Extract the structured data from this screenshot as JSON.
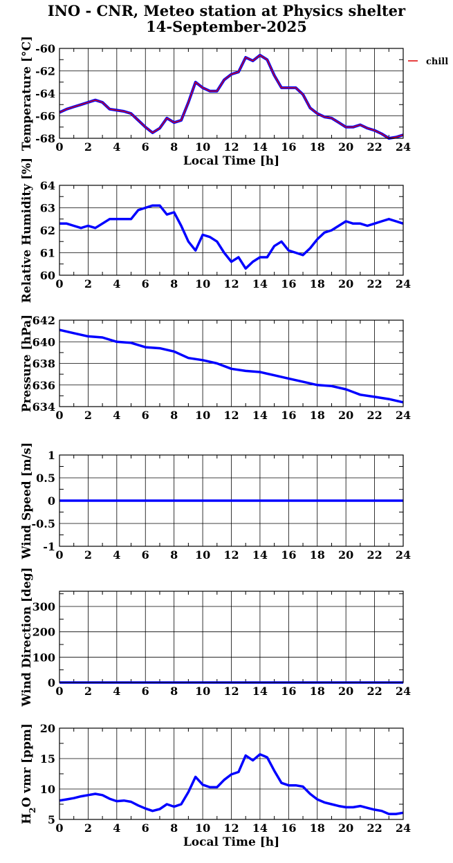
{
  "page": {
    "title_line1": "INO - CNR, Meteo station at Physics shelter",
    "title_line2": "14-September-2025"
  },
  "colors": {
    "series": "#0000ff",
    "chill": "#dd0000",
    "grid": "#000000"
  },
  "chart_data": [
    {
      "type": "line",
      "ylabel": "Temperature [°C]",
      "xlabel": "Local Time [h]",
      "xlim": [
        0,
        24
      ],
      "xticks": [
        0,
        2,
        4,
        6,
        8,
        10,
        12,
        14,
        16,
        18,
        20,
        22,
        24
      ],
      "ylim": [
        -68,
        -60
      ],
      "yticks": [
        -68,
        -66,
        -64,
        -62,
        -60
      ],
      "legend": {
        "label": "chill",
        "placement": "right"
      },
      "series": [
        {
          "name": "chill",
          "color": "#dd0000",
          "x": [
            0,
            0.5,
            1,
            1.5,
            2,
            2.5,
            3,
            3.5,
            4,
            4.5,
            5,
            5.5,
            6,
            6.5,
            7,
            7.5,
            8,
            8.5,
            9,
            9.5,
            10,
            10.5,
            11,
            11.5,
            12,
            12.5,
            13,
            13.5,
            14,
            14.5,
            15,
            15.5,
            16,
            16.5,
            17,
            17.5,
            18,
            18.5,
            19,
            19.5,
            20,
            20.5,
            21,
            21.5,
            22,
            22.5,
            23,
            23.5,
            24
          ],
          "y": [
            -65.7,
            -65.4,
            -65.2,
            -65.0,
            -64.8,
            -64.6,
            -64.8,
            -65.4,
            -65.5,
            -65.6,
            -65.8,
            -66.4,
            -67.0,
            -67.5,
            -67.1,
            -66.2,
            -66.6,
            -66.4,
            -64.8,
            -63.0,
            -63.5,
            -63.8,
            -63.8,
            -62.8,
            -62.3,
            -62.1,
            -60.8,
            -61.1,
            -60.6,
            -61.0,
            -62.4,
            -63.5,
            -63.5,
            -63.5,
            -64.1,
            -65.3,
            -65.8,
            -66.1,
            -66.2,
            -66.6,
            -67.0,
            -67.0,
            -66.8,
            -67.1,
            -67.3,
            -67.6,
            -68.0,
            -67.9,
            -67.7
          ]
        }
      ]
    },
    {
      "type": "line",
      "ylabel": "Relative Humidity [%]",
      "xlabel": "",
      "xlim": [
        0,
        24
      ],
      "xticks": [
        0,
        2,
        4,
        6,
        8,
        10,
        12,
        14,
        16,
        18,
        20,
        22,
        24
      ],
      "ylim": [
        60,
        64
      ],
      "yticks": [
        60,
        61,
        62,
        63,
        64
      ],
      "series": [
        {
          "color": "#0000ff",
          "x": [
            0,
            0.5,
            1,
            1.5,
            2,
            2.5,
            3,
            3.5,
            4,
            4.5,
            5,
            5.5,
            6,
            6.5,
            7,
            7.5,
            8,
            8.5,
            9,
            9.5,
            10,
            10.5,
            11,
            11.5,
            12,
            12.5,
            13,
            13.5,
            14,
            14.5,
            15,
            15.5,
            16,
            16.5,
            17,
            17.5,
            18,
            18.5,
            19,
            19.5,
            20,
            20.5,
            21,
            21.5,
            22,
            22.5,
            23,
            23.5,
            24
          ],
          "y": [
            62.3,
            62.3,
            62.2,
            62.1,
            62.2,
            62.1,
            62.3,
            62.5,
            62.5,
            62.5,
            62.5,
            62.9,
            63.0,
            63.1,
            63.1,
            62.7,
            62.8,
            62.2,
            61.5,
            61.1,
            61.8,
            61.7,
            61.5,
            61.0,
            60.6,
            60.8,
            60.3,
            60.6,
            60.8,
            60.8,
            61.3,
            61.5,
            61.1,
            61.0,
            60.9,
            61.2,
            61.6,
            61.9,
            62.0,
            62.2,
            62.4,
            62.3,
            62.3,
            62.2,
            62.3,
            62.4,
            62.5,
            62.4,
            62.3
          ]
        }
      ]
    },
    {
      "type": "line",
      "ylabel": "Pressure [hPa]",
      "xlabel": "",
      "xlim": [
        0,
        24
      ],
      "xticks": [
        0,
        2,
        4,
        6,
        8,
        10,
        12,
        14,
        16,
        18,
        20,
        22,
        24
      ],
      "ylim": [
        634,
        642
      ],
      "yticks": [
        634,
        636,
        638,
        640,
        642
      ],
      "series": [
        {
          "color": "#0000ff",
          "x": [
            0,
            1,
            2,
            3,
            4,
            5,
            6,
            7,
            8,
            9,
            10,
            11,
            12,
            13,
            14,
            15,
            16,
            17,
            18,
            19,
            20,
            21,
            22,
            23,
            24
          ],
          "y": [
            641.1,
            640.8,
            640.5,
            640.4,
            640.0,
            639.9,
            639.5,
            639.4,
            639.1,
            638.5,
            638.3,
            638.0,
            637.5,
            637.3,
            637.2,
            636.9,
            636.6,
            636.3,
            636.0,
            635.9,
            635.6,
            635.1,
            634.9,
            634.7,
            634.4
          ]
        }
      ]
    },
    {
      "type": "line",
      "ylabel": "Wind Speed [m/s]",
      "xlabel": "",
      "xlim": [
        0,
        24
      ],
      "xticks": [
        0,
        2,
        4,
        6,
        8,
        10,
        12,
        14,
        16,
        18,
        20,
        22,
        24
      ],
      "ylim": [
        -1,
        1
      ],
      "yticks": [
        -1,
        -0.5,
        0,
        0.5,
        1
      ],
      "series": [
        {
          "color": "#0000ff",
          "x": [
            0,
            24
          ],
          "y": [
            0,
            0
          ]
        }
      ]
    },
    {
      "type": "line",
      "ylabel": "Wind Direction [deg]",
      "xlabel": "",
      "xlim": [
        0,
        24
      ],
      "xticks": [
        0,
        2,
        4,
        6,
        8,
        10,
        12,
        14,
        16,
        18,
        20,
        22,
        24
      ],
      "ylim": [
        0,
        360
      ],
      "yticks": [
        0,
        100,
        200,
        300
      ],
      "series": [
        {
          "color": "#0000ff",
          "x": [
            0,
            24
          ],
          "y": [
            0,
            0
          ]
        }
      ]
    },
    {
      "type": "line",
      "ylabel": "H2O vmr [ppm]",
      "xlabel": "Local Time [h]",
      "xlim": [
        0,
        24
      ],
      "xticks": [
        0,
        2,
        4,
        6,
        8,
        10,
        12,
        14,
        16,
        18,
        20,
        22,
        24
      ],
      "ylim": [
        5,
        20
      ],
      "yticks": [
        5,
        10,
        15,
        20
      ],
      "series": [
        {
          "color": "#0000ff",
          "x": [
            0,
            0.5,
            1,
            1.5,
            2,
            2.5,
            3,
            3.5,
            4,
            4.5,
            5,
            5.5,
            6,
            6.5,
            7,
            7.5,
            8,
            8.5,
            9,
            9.5,
            10,
            10.5,
            11,
            11.5,
            12,
            12.5,
            13,
            13.5,
            14,
            14.5,
            15,
            15.5,
            16,
            16.5,
            17,
            17.5,
            18,
            18.5,
            19,
            19.5,
            20,
            20.5,
            21,
            21.5,
            22,
            22.5,
            23,
            23.5,
            24
          ],
          "y": [
            8.1,
            8.3,
            8.5,
            8.8,
            9.0,
            9.2,
            9.0,
            8.4,
            8.0,
            8.1,
            7.9,
            7.3,
            6.8,
            6.4,
            6.7,
            7.5,
            7.1,
            7.5,
            9.5,
            12.0,
            10.7,
            10.3,
            10.3,
            11.5,
            12.4,
            12.8,
            15.5,
            14.7,
            15.7,
            15.2,
            13.0,
            11.0,
            10.6,
            10.6,
            10.4,
            9.2,
            8.3,
            7.8,
            7.5,
            7.2,
            7.0,
            7.0,
            7.2,
            6.9,
            6.6,
            6.4,
            5.9,
            5.9,
            6.1
          ]
        }
      ]
    }
  ]
}
